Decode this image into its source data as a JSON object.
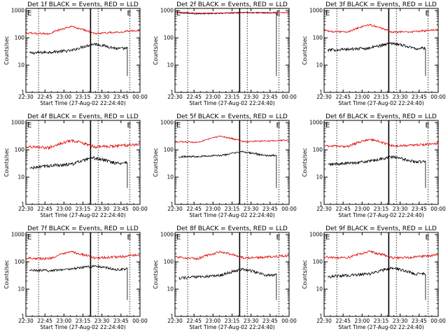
{
  "chart_data": [
    {
      "type": "line",
      "title": "Det 1f BLACK = Events, RED = LLD",
      "xlabel": "Start Time (27-Aug-02 22:24:40)",
      "ylabel": "Counts/sec",
      "yscale": "log",
      "ylim": [
        1,
        1200
      ],
      "xlim_minutes": [
        0,
        90
      ],
      "xtick_labels": [
        "22:30",
        "22:45",
        "23:00",
        "23:15",
        "23:30",
        "23:45",
        "00:00"
      ],
      "ytick_labels": [
        "1",
        "10",
        "100",
        "1000"
      ],
      "markers": [
        {
          "label": "E",
          "position": "22:30"
        },
        {
          "label": "E",
          "position": "23:45"
        }
      ],
      "series": [
        {
          "color": "#000000",
          "baseline": [
            27,
            30,
            34,
            60,
            40,
            43
          ],
          "noise": 0.06,
          "cutoff": "23:50"
        },
        {
          "color": "#e00000",
          "baseline": [
            150,
            140,
            260,
            145,
            160,
            190
          ],
          "noise": 0.04,
          "cutoff": null
        }
      ]
    },
    {
      "type": "line",
      "title": "Det 2f BLACK = Events, RED = LLD",
      "xlabel": "Start Time (27-Aug-02 22:24:40)",
      "ylabel": "Counts/sec",
      "yscale": "log",
      "ylim": [
        1,
        1200
      ],
      "xlim_minutes": [
        0,
        90
      ],
      "xtick_labels": [
        "22:30",
        "22:45",
        "23:00",
        "23:15",
        "23:30",
        "23:45",
        "00:00"
      ],
      "ytick_labels": [
        "1",
        "10",
        "100",
        "1000"
      ],
      "markers": [
        {
          "label": "E",
          "position": "22:30"
        },
        {
          "label": "E",
          "position": "23:45"
        }
      ],
      "series": [
        {
          "color": "#000000",
          "baseline": [
            850,
            760,
            790,
            840,
            820,
            820
          ],
          "noise": 0.02,
          "cutoff": "23:50"
        },
        {
          "color": "#e00000",
          "baseline": [
            880,
            800,
            810,
            860,
            840,
            840
          ],
          "noise": 0.02,
          "cutoff": null
        }
      ]
    },
    {
      "type": "line",
      "title": "Det 3f BLACK = Events, RED = LLD",
      "xlabel": "Start Time (27-Aug-02 22:24:40)",
      "ylabel": "Counts/sec",
      "yscale": "log",
      "ylim": [
        1,
        1200
      ],
      "xlim_minutes": [
        0,
        90
      ],
      "xtick_labels": [
        "22:30",
        "22:45",
        "23:00",
        "23:15",
        "23:30",
        "23:45",
        "00:00"
      ],
      "ytick_labels": [
        "1",
        "10",
        "100",
        "1000"
      ],
      "markers": [
        {
          "label": "E",
          "position": "22:30"
        },
        {
          "label": "E",
          "position": "23:45"
        }
      ],
      "series": [
        {
          "color": "#000000",
          "baseline": [
            35,
            38,
            42,
            65,
            40,
            45
          ],
          "noise": 0.06,
          "cutoff": "23:50"
        },
        {
          "color": "#e00000",
          "baseline": [
            180,
            160,
            300,
            160,
            170,
            200
          ],
          "noise": 0.04,
          "cutoff": null
        }
      ]
    },
    {
      "type": "line",
      "title": "Det 4f BLACK = Events, RED = LLD",
      "xlabel": "Start Time (27-Aug-02 22:24:40)",
      "ylabel": "Counts/sec",
      "yscale": "log",
      "ylim": [
        1,
        1200
      ],
      "xlim_minutes": [
        0,
        90
      ],
      "xtick_labels": [
        "22:30",
        "22:45",
        "23:00",
        "23:15",
        "23:30",
        "23:45",
        "00:00"
      ],
      "ytick_labels": [
        "1",
        "10",
        "100",
        "1000"
      ],
      "markers": [
        {
          "label": "E",
          "position": "22:30"
        },
        {
          "label": "E",
          "position": "23:45"
        }
      ],
      "series": [
        {
          "color": "#000000",
          "baseline": [
            20,
            26,
            30,
            50,
            32,
            38
          ],
          "noise": 0.07,
          "cutoff": "23:50"
        },
        {
          "color": "#e00000",
          "baseline": [
            130,
            120,
            220,
            130,
            140,
            160
          ],
          "noise": 0.06,
          "cutoff": null
        }
      ]
    },
    {
      "type": "line",
      "title": "Det 5f BLACK = Events, RED = LLD",
      "xlabel": "Start Time (27-Aug-02 22:24:40)",
      "ylabel": "Counts/sec",
      "yscale": "log",
      "ylim": [
        1,
        1200
      ],
      "xlim_minutes": [
        0,
        90
      ],
      "xtick_labels": [
        "22:30",
        "22:45",
        "23:00",
        "23:15",
        "23:30",
        "23:45",
        "00:00"
      ],
      "ytick_labels": [
        "1",
        "10",
        "100",
        "1000"
      ],
      "markers": [
        {
          "label": "E",
          "position": "22:30"
        },
        {
          "label": "E",
          "position": "23:45"
        }
      ],
      "series": [
        {
          "color": "#000000",
          "baseline": [
            55,
            58,
            62,
            85,
            60,
            68
          ],
          "noise": 0.04,
          "cutoff": "23:50"
        },
        {
          "color": "#e00000",
          "baseline": [
            200,
            190,
            320,
            200,
            210,
            230
          ],
          "noise": 0.03,
          "cutoff": null
        }
      ]
    },
    {
      "type": "line",
      "title": "Det 6f BLACK = Events, RED = LLD",
      "xlabel": "Start Time (27-Aug-02 22:24:40)",
      "ylabel": "Counts/sec",
      "yscale": "log",
      "ylim": [
        1,
        1200
      ],
      "xlim_minutes": [
        0,
        90
      ],
      "xtick_labels": [
        "22:30",
        "22:45",
        "23:00",
        "23:15",
        "23:30",
        "23:45",
        "00:00"
      ],
      "ytick_labels": [
        "1",
        "10",
        "100",
        "1000"
      ],
      "markers": [
        {
          "label": "E",
          "position": "22:30"
        },
        {
          "label": "E",
          "position": "23:45"
        }
      ],
      "series": [
        {
          "color": "#000000",
          "baseline": [
            28,
            32,
            38,
            55,
            36,
            40
          ],
          "noise": 0.06,
          "cutoff": "23:50"
        },
        {
          "color": "#e00000",
          "baseline": [
            140,
            130,
            240,
            140,
            150,
            170
          ],
          "noise": 0.05,
          "cutoff": null
        }
      ]
    },
    {
      "type": "line",
      "title": "Det 7f BLACK = Events, RED = LLD",
      "xlabel": "Start Time (27-Aug-02 22:24:40)",
      "ylabel": "Counts/sec",
      "yscale": "log",
      "ylim": [
        1,
        1200
      ],
      "xlim_minutes": [
        0,
        90
      ],
      "xtick_labels": [
        "22:30",
        "22:45",
        "23:00",
        "23:15",
        "23:30",
        "23:45",
        "00:00"
      ],
      "ytick_labels": [
        "1",
        "10",
        "100",
        "1000"
      ],
      "markers": [
        {
          "label": "E",
          "position": "22:30"
        },
        {
          "label": "E",
          "position": "23:45"
        }
      ],
      "series": [
        {
          "color": "#000000",
          "baseline": [
            50,
            48,
            55,
            70,
            52,
            60
          ],
          "noise": 0.05,
          "cutoff": "23:50"
        },
        {
          "color": "#e00000",
          "baseline": [
            140,
            130,
            230,
            140,
            150,
            180
          ],
          "noise": 0.05,
          "cutoff": null
        }
      ]
    },
    {
      "type": "line",
      "title": "Det 8f BLACK = Events, RED = LLD",
      "xlabel": "Start Time (27-Aug-02 22:24:40)",
      "ylabel": "Counts/sec",
      "yscale": "log",
      "ylim": [
        1,
        1200
      ],
      "xlim_minutes": [
        0,
        90
      ],
      "xtick_labels": [
        "22:30",
        "22:45",
        "23:00",
        "23:15",
        "23:30",
        "23:45",
        "00:00"
      ],
      "ytick_labels": [
        "1",
        "10",
        "100",
        "1000"
      ],
      "markers": [
        {
          "label": "E",
          "position": "22:30"
        },
        {
          "label": "E",
          "position": "23:45"
        }
      ],
      "series": [
        {
          "color": "#000000",
          "baseline": [
            25,
            28,
            32,
            55,
            32,
            35
          ],
          "noise": 0.06,
          "cutoff": "23:50"
        },
        {
          "color": "#e00000",
          "baseline": [
            150,
            130,
            230,
            140,
            150,
            170
          ],
          "noise": 0.05,
          "cutoff": null
        }
      ]
    },
    {
      "type": "line",
      "title": "Det 9f BLACK = Events, RED = LLD",
      "xlabel": "Start Time (27-Aug-02 22:24:40)",
      "ylabel": "Counts/sec",
      "yscale": "log",
      "ylim": [
        1,
        1200
      ],
      "xlim_minutes": [
        0,
        90
      ],
      "xtick_labels": [
        "22:30",
        "22:45",
        "23:00",
        "23:15",
        "23:30",
        "23:45",
        "00:00"
      ],
      "ytick_labels": [
        "1",
        "10",
        "100",
        "1000"
      ],
      "markers": [
        {
          "label": "E",
          "position": "22:30"
        },
        {
          "label": "E",
          "position": "23:45"
        }
      ],
      "series": [
        {
          "color": "#000000",
          "baseline": [
            28,
            32,
            36,
            60,
            36,
            40
          ],
          "noise": 0.06,
          "cutoff": "23:50"
        },
        {
          "color": "#e00000",
          "baseline": [
            150,
            140,
            240,
            140,
            150,
            180
          ],
          "noise": 0.05,
          "cutoff": null
        }
      ]
    }
  ]
}
